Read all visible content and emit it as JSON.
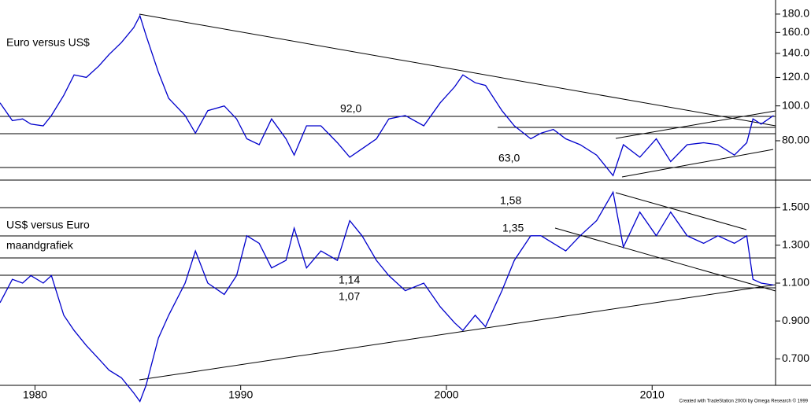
{
  "chart_data": [
    {
      "type": "line",
      "title": "Euro versus US$",
      "log_scale": true,
      "xlim": [
        1978.3,
        2016.0
      ],
      "ylim": [
        62.5,
        197
      ],
      "yticks": [
        {
          "value": 180,
          "label": "180.0"
        },
        {
          "value": 160,
          "label": "160.0"
        },
        {
          "value": 140,
          "label": "140.0"
        },
        {
          "value": 120,
          "label": "120.0"
        },
        {
          "value": 100,
          "label": "100.0"
        },
        {
          "value": 80,
          "label": "80.00"
        }
      ],
      "annotations": [
        "92,0",
        "63,0"
      ],
      "series": [
        {
          "color": "#0000cc",
          "x": [
            1978.3,
            1978.9,
            1979.4,
            1979.8,
            1980.4,
            1980.8,
            1981.4,
            1981.9,
            1982.5,
            1983.1,
            1983.6,
            1984.2,
            1984.8,
            1985.1,
            1985.4,
            1986.0,
            1986.5,
            1987.3,
            1987.8,
            1988.4,
            1989.2,
            1989.8,
            1990.3,
            1990.9,
            1991.5,
            1992.2,
            1992.6,
            1993.2,
            1993.9,
            1994.7,
            1995.3,
            1995.9,
            1996.6,
            1997.2,
            1998.0,
            1998.9,
            1999.7,
            2000.4,
            2000.8,
            2001.4,
            2001.9,
            2002.7,
            2003.3,
            2004.1,
            2004.6,
            2005.2,
            2005.8,
            2006.5,
            2007.3,
            2008.1,
            2008.6,
            2009.4,
            2010.2,
            2010.9,
            2011.7,
            2012.5,
            2013.2,
            2014.0,
            2014.6,
            2014.9,
            2015.3,
            2015.9
          ],
          "values": [
            102,
            91,
            92,
            89,
            88,
            94,
            107,
            122,
            120,
            129,
            139,
            150,
            165,
            178,
            157,
            124,
            105,
            94,
            84,
            97,
            100,
            92,
            81,
            78,
            92,
            81,
            73,
            88,
            88,
            79,
            72,
            76,
            81,
            92,
            94,
            88,
            102,
            113,
            122,
            116,
            114,
            97,
            88,
            81,
            84,
            86,
            81,
            78,
            73,
            64,
            78,
            72,
            81,
            70,
            78,
            79,
            78,
            73,
            79,
            92,
            89,
            94
          ]
        }
      ]
    },
    {
      "type": "line",
      "title": "US$ versus Euro",
      "subtitle": "maandgrafiek",
      "xlim": [
        1978.3,
        2016.0
      ],
      "ylim": [
        0.56,
        1.64
      ],
      "xticks": [
        1980,
        1990,
        2000,
        2010
      ],
      "yticks": [
        {
          "value": 1.5,
          "label": "1.500"
        },
        {
          "value": 1.3,
          "label": "1.300"
        },
        {
          "value": 1.1,
          "label": "1.100"
        },
        {
          "value": 0.9,
          "label": "0.900"
        },
        {
          "value": 0.7,
          "label": "0.700"
        }
      ],
      "annotations": [
        "1,58",
        "1,35",
        "1,14",
        "1,07"
      ],
      "series": [
        {
          "color": "#0000cc",
          "x": [
            1978.3,
            1978.9,
            1979.4,
            1979.8,
            1980.4,
            1980.8,
            1981.4,
            1981.9,
            1982.5,
            1983.1,
            1983.6,
            1984.2,
            1984.8,
            1985.1,
            1985.4,
            1986.0,
            1986.5,
            1987.3,
            1987.8,
            1988.4,
            1989.2,
            1989.8,
            1990.3,
            1990.9,
            1991.5,
            1992.2,
            1992.6,
            1993.2,
            1993.9,
            1994.7,
            1995.3,
            1995.9,
            1996.6,
            1997.2,
            1998.0,
            1998.9,
            1999.7,
            2000.4,
            2000.8,
            2001.4,
            2001.9,
            2002.7,
            2003.3,
            2004.1,
            2004.6,
            2005.2,
            2005.8,
            2006.5,
            2007.3,
            2008.1,
            2008.6,
            2009.4,
            2010.2,
            2010.9,
            2011.7,
            2012.5,
            2013.2,
            2014.0,
            2014.6,
            2014.9,
            2015.3,
            2015.9
          ],
          "values": [
            0.996,
            1.12,
            1.1,
            1.14,
            1.1,
            1.14,
            0.93,
            0.85,
            0.77,
            0.7,
            0.64,
            0.6,
            0.52,
            0.475,
            0.56,
            0.81,
            0.93,
            1.1,
            1.27,
            1.1,
            1.04,
            1.14,
            1.35,
            1.31,
            1.18,
            1.22,
            1.39,
            1.18,
            1.27,
            1.22,
            1.43,
            1.35,
            1.22,
            1.14,
            1.06,
            1.1,
            0.975,
            0.89,
            0.85,
            0.93,
            0.87,
            1.06,
            1.22,
            1.35,
            1.35,
            1.31,
            1.27,
            1.35,
            1.43,
            1.58,
            1.29,
            1.475,
            1.35,
            1.475,
            1.35,
            1.31,
            1.35,
            1.31,
            1.35,
            1.12,
            1.1,
            1.09
          ]
        }
      ]
    }
  ],
  "footer": "Created with TradeStation 2000i by Omega Research © 1999"
}
